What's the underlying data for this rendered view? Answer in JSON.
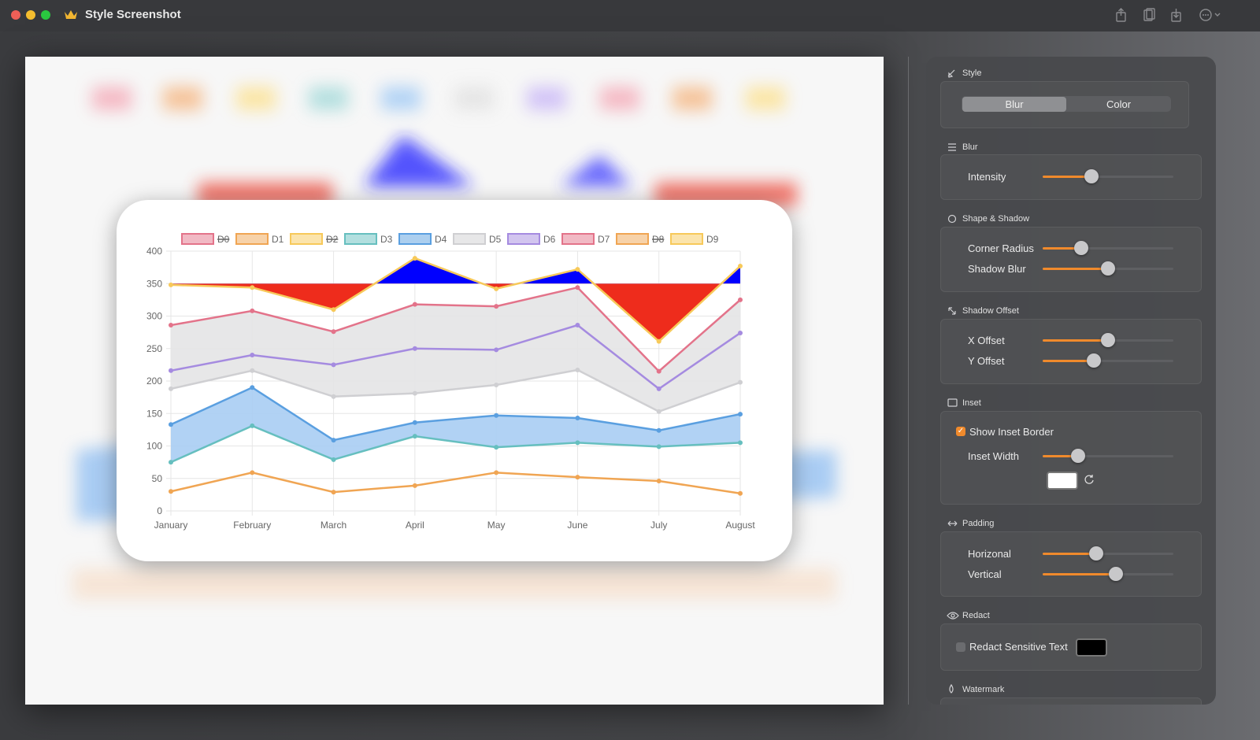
{
  "window": {
    "title": "Style Screenshot"
  },
  "sidebar": {
    "sections": [
      {
        "title": "Style",
        "options": [
          "Blur",
          "Color"
        ]
      },
      {
        "title": "Blur",
        "controls": [
          "Intensity"
        ]
      },
      {
        "title": "Shape & Shadow",
        "controls": [
          "Corner Radius",
          "Shadow Blur"
        ]
      },
      {
        "title": "Shadow Offset",
        "controls": [
          "X Offset",
          "Y Offset"
        ]
      },
      {
        "title": "Inset",
        "checkbox": "Show Inset Border",
        "controls": [
          "Inset Width"
        ]
      },
      {
        "title": "Padding",
        "controls": [
          "Horizonal",
          "Vertical"
        ]
      },
      {
        "title": "Redact",
        "checkbox": "Redact Sensitive Text"
      },
      {
        "title": "Watermark"
      }
    ]
  },
  "chart_data": {
    "type": "line",
    "categories": [
      "January",
      "February",
      "March",
      "April",
      "May",
      "June",
      "July",
      "August"
    ],
    "ylim": [
      0,
      400
    ],
    "yticks": [
      0,
      50,
      100,
      150,
      200,
      250,
      300,
      350,
      400
    ],
    "grid": true,
    "series": [
      {
        "name": "D0",
        "color": "#e3738a",
        "hidden": true
      },
      {
        "name": "D1",
        "color": "#f0a553",
        "values": [
          30,
          59,
          29,
          39,
          59,
          52,
          46,
          27
        ]
      },
      {
        "name": "D2",
        "color": "#f7c95a",
        "hidden": true
      },
      {
        "name": "D3",
        "color": "#66bfbf",
        "values": [
          75,
          131,
          79,
          115,
          98,
          105,
          99,
          105
        ]
      },
      {
        "name": "D4",
        "color": "#5a9fe0",
        "values": [
          133,
          190,
          109,
          136,
          147,
          143,
          124,
          149
        ],
        "fill": {
          "target": 3,
          "color": "#a9cdf3"
        }
      },
      {
        "name": "D5",
        "color": "#cfcfd2",
        "values": [
          188,
          216,
          176,
          181,
          194,
          217,
          153,
          198
        ]
      },
      {
        "name": "D6",
        "color": "#a58be0",
        "values": [
          216,
          240,
          225,
          250,
          248,
          286,
          188,
          274
        ]
      },
      {
        "name": "D7",
        "color": "#e3738a",
        "values": [
          286,
          308,
          276,
          318,
          315,
          344,
          215,
          325
        ],
        "fill": {
          "target": 5,
          "color": "#e4e4e6"
        }
      },
      {
        "name": "D8",
        "color": "#f0a553",
        "hidden": true
      },
      {
        "name": "D9",
        "color": "#f7c95a",
        "values": [
          348,
          344,
          310,
          389,
          342,
          372,
          261,
          377
        ],
        "fill": {
          "value": 350,
          "above": "#0000ff",
          "below": "#ee2c1c"
        }
      }
    ]
  }
}
